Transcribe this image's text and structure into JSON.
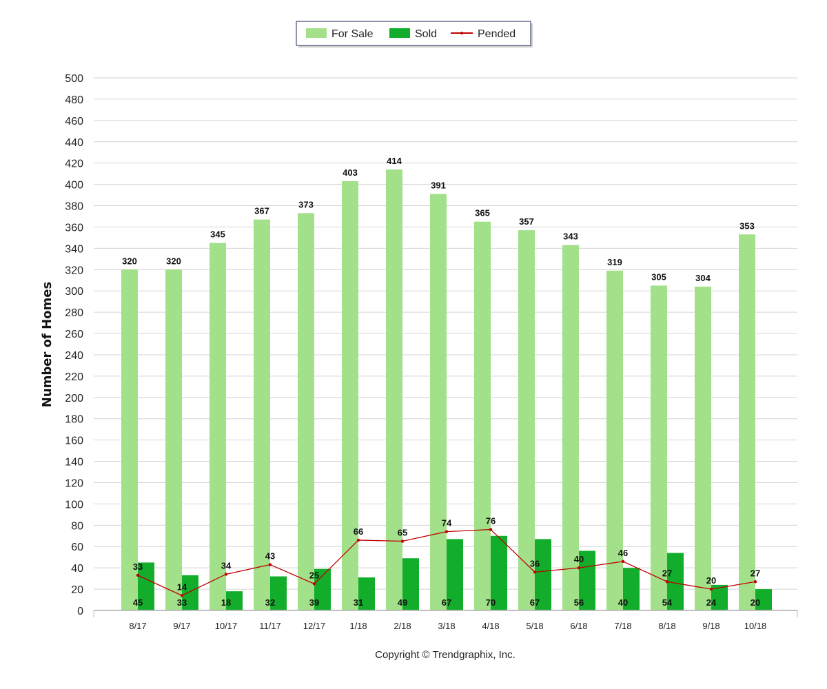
{
  "chart_data": {
    "type": "bar",
    "categories": [
      "8/17",
      "9/17",
      "10/17",
      "11/17",
      "12/17",
      "1/18",
      "2/18",
      "3/18",
      "4/18",
      "5/18",
      "6/18",
      "7/18",
      "8/18",
      "9/18",
      "10/18"
    ],
    "series": [
      {
        "name": "For Sale",
        "kind": "bar",
        "color": "#a2e08a",
        "values": [
          320,
          320,
          345,
          367,
          373,
          403,
          414,
          391,
          365,
          357,
          343,
          319,
          305,
          304,
          353
        ]
      },
      {
        "name": "Sold",
        "kind": "bar",
        "color": "#12ad2b",
        "values": [
          45,
          33,
          18,
          32,
          39,
          31,
          49,
          67,
          70,
          67,
          56,
          40,
          54,
          24,
          20
        ]
      },
      {
        "name": "Pended",
        "kind": "line",
        "color": "#c00000",
        "values": [
          33,
          14,
          34,
          43,
          25,
          66,
          65,
          74,
          76,
          36,
          40,
          46,
          27,
          20,
          27
        ]
      }
    ],
    "ylabel": "Number of Homes",
    "xlabel": "",
    "ylim": [
      0,
      500
    ],
    "ytick_step": 20,
    "grid": true,
    "legend_position": "top-center"
  },
  "footer": {
    "copyright": "Copyright © Trendgraphix, Inc."
  }
}
